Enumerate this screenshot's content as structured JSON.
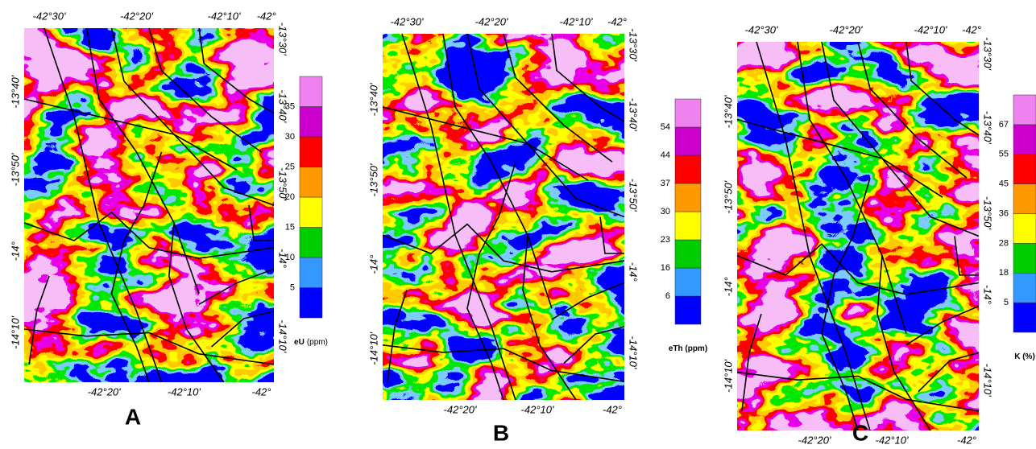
{
  "legend_colors": [
    "#0000ff",
    "#3399ff",
    "#00cc00",
    "#ffff00",
    "#ff9900",
    "#ff0000",
    "#cc00cc",
    "#ee82ee"
  ],
  "panels": [
    {
      "letter": "A",
      "top_labels": [
        "-42°30'",
        "-42°20'",
        "-42°10'",
        "-42°"
      ],
      "right_labels": [
        "-13°30'",
        "-13°40'",
        "-13°50'",
        "-14°",
        "-14°10'"
      ],
      "left_labels": [
        "-13°40'",
        "-13°50'",
        "-14°",
        "-14°10'"
      ],
      "bottom_labels": [
        "-42°20'",
        "-42°10'",
        "-42°"
      ],
      "legend": {
        "ticks": [
          5,
          10,
          15,
          20,
          25,
          30,
          35
        ],
        "label_bold": "eU",
        "label": "(ppm)"
      }
    },
    {
      "letter": "B",
      "top_labels": [
        "-42°30'",
        "-42°20'",
        "-42°10'",
        "-42°"
      ],
      "right_labels": [
        "-13°30'",
        "-13°40'",
        "-13°50'",
        "-14°",
        "-14°10'"
      ],
      "left_labels": [
        "-13°40'",
        "-13°50'",
        "-14°",
        "-14°10'"
      ],
      "bottom_labels": [
        "-42°20'",
        "-42°10'",
        "-42°"
      ],
      "legend": {
        "ticks": [
          6,
          16,
          23,
          30,
          37,
          44,
          54
        ],
        "label_bold": "eTh (ppm)"
      }
    },
    {
      "letter": "C",
      "top_labels": [
        "-42°30'",
        "-42°20'",
        "-42°10'",
        "-42°"
      ],
      "right_labels": [
        "-13°30'",
        "-13°40'",
        "-13°50'",
        "-14°",
        "-14°10'"
      ],
      "left_labels": [
        "-13°40'",
        "-13°50'",
        "-14°",
        "-14°10'"
      ],
      "bottom_labels": [
        "-42°20'",
        "-42°10'",
        "-42°"
      ],
      "legend": {
        "ticks": [
          5,
          18,
          28,
          36,
          45,
          55,
          67
        ],
        "label_bold": "K (%)"
      }
    }
  ]
}
